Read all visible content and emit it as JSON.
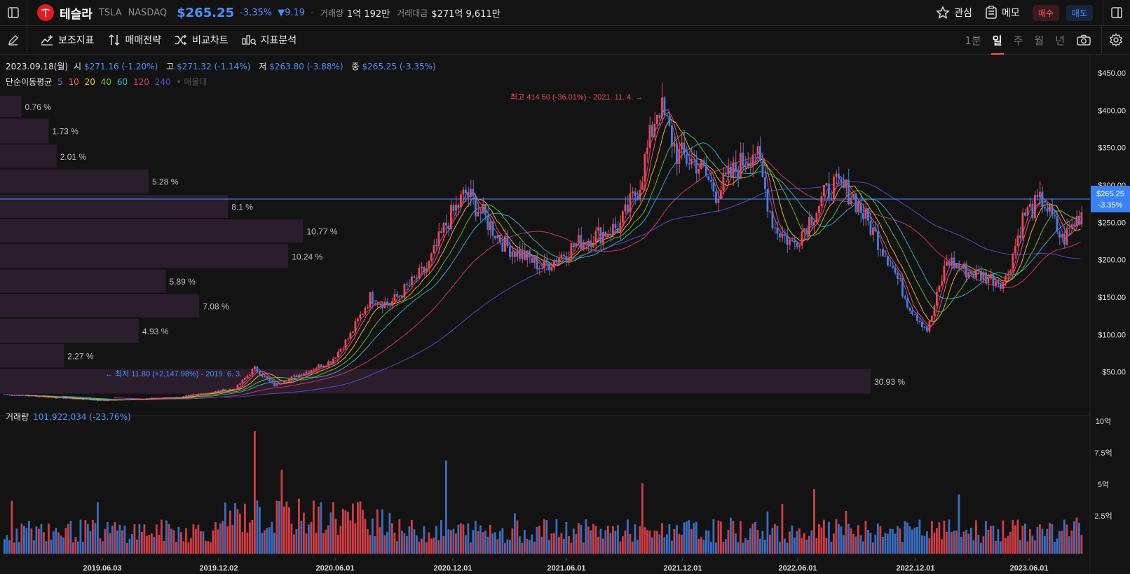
{
  "header": {
    "name": "테슬라",
    "ticker": "TSLA",
    "exchange": "NASDAQ",
    "price": "$265.25",
    "change_pct": "-3.35%",
    "change_abs": "▼9.19",
    "volume_label": "거래량",
    "volume_value": "1억 192만",
    "turnover_label": "거래대금",
    "turnover_value": "$271억 9,611만",
    "watch_label": "관심",
    "memo_label": "메모",
    "buy_label": "매수",
    "sell_label": "매도"
  },
  "toolbar": {
    "indicator_label": "보조지표",
    "strategy_label": "매매전략",
    "compare_label": "비교차트",
    "analysis_label": "지표분석",
    "timeframes": [
      "1분",
      "일",
      "주",
      "월",
      "년"
    ],
    "active_timeframe": "일"
  },
  "ohlc": {
    "date": "2023.09.18(월)",
    "open_label": "시",
    "open_value": "$271.16 (-1.20%)",
    "high_label": "고",
    "high_value": "$271.32 (-1.14%)",
    "low_label": "저",
    "low_value": "$263.80 (-3.88%)",
    "close_label": "종",
    "close_value": "$265.25 (-3.35%)"
  },
  "ma": {
    "label": "단순이동평균",
    "periods": [
      "5",
      "10",
      "20",
      "40",
      "60",
      "120",
      "240"
    ],
    "colors": [
      "#b34fd6",
      "#ff5a5a",
      "#f5c518",
      "#66c23a",
      "#33b5cc",
      "#e0337a",
      "#5a4fd6"
    ],
    "extra": "• 매물대"
  },
  "annotations": {
    "high": "최고 414.50 (-36.01%) - 2021. 11. 4. →",
    "low": "← 최저 11.80 (+2,147.98%) - 2019. 6. 3."
  },
  "volume_panel": {
    "label": "거래량",
    "value": "101,922,034 (-23.76%)",
    "axis": [
      "10억",
      "7.5억",
      "5억",
      "2.5억"
    ]
  },
  "current_price_tag": {
    "price": "$265.25",
    "change": "-3.35%"
  },
  "colors": {
    "up": "#f0454e",
    "down": "#3f7fe0",
    "accent": "#4b8fff",
    "profile": "#2a1d2c"
  },
  "chart_data": {
    "type": "candlestick",
    "price_axis": [
      "$450.00",
      "$400.00",
      "$350.00",
      "$300.00",
      "$250.00",
      "$200.00",
      "$150.00",
      "$100.00",
      "$50.00"
    ],
    "ylim": [
      0,
      450
    ],
    "x_ticks": [
      "2019.06.03",
      "2019.12.02",
      "2020.06.01",
      "2020.12.01",
      "2021.06.01",
      "2021.12.01",
      "2022.06.01",
      "2022.12.01",
      "2023.06.01"
    ],
    "price_path": [
      [
        "2019.01",
        20
      ],
      [
        "2019.06",
        12
      ],
      [
        "2019.10",
        16
      ],
      [
        "2020.01",
        28
      ],
      [
        "2020.02",
        55
      ],
      [
        "2020.03",
        32
      ],
      [
        "2020.06",
        65
      ],
      [
        "2020.07",
        100
      ],
      [
        "2020.08",
        150
      ],
      [
        "2020.09",
        140
      ],
      [
        "2020.11",
        190
      ],
      [
        "2020.12",
        250
      ],
      [
        "2021.01",
        290
      ],
      [
        "2021.03",
        220
      ],
      [
        "2021.05",
        190
      ],
      [
        "2021.07",
        225
      ],
      [
        "2021.09",
        245
      ],
      [
        "2021.10",
        300
      ],
      [
        "2021.11",
        410
      ],
      [
        "2021.12",
        340
      ],
      [
        "2022.01",
        330
      ],
      [
        "2022.02",
        290
      ],
      [
        "2022.04",
        350
      ],
      [
        "2022.05",
        245
      ],
      [
        "2022.06",
        220
      ],
      [
        "2022.08",
        300
      ],
      [
        "2022.09",
        290
      ],
      [
        "2022.11",
        200
      ],
      [
        "2022.12",
        140
      ],
      [
        "2023.01",
        105
      ],
      [
        "2023.02",
        200
      ],
      [
        "2023.03",
        185
      ],
      [
        "2023.05",
        170
      ],
      [
        "2023.06",
        260
      ],
      [
        "2023.07",
        280
      ],
      [
        "2023.08",
        225
      ],
      [
        "2023.09",
        265
      ]
    ],
    "volume_profile": [
      {
        "price_from": 390,
        "price_to": 420,
        "pct": "0.76 %",
        "share": 0.76
      },
      {
        "price_from": 355,
        "price_to": 390,
        "pct": "1.73 %",
        "share": 1.73
      },
      {
        "price_from": 322,
        "price_to": 355,
        "pct": "2.01 %",
        "share": 2.01
      },
      {
        "price_from": 288,
        "price_to": 322,
        "pct": "5.28 %",
        "share": 5.28
      },
      {
        "price_from": 255,
        "price_to": 288,
        "pct": "8.1 %",
        "share": 8.1
      },
      {
        "price_from": 222,
        "price_to": 255,
        "pct": "10.77 %",
        "share": 10.77
      },
      {
        "price_from": 188,
        "price_to": 222,
        "pct": "10.24 %",
        "share": 10.24
      },
      {
        "price_from": 155,
        "price_to": 188,
        "pct": "5.89 %",
        "share": 5.89
      },
      {
        "price_from": 122,
        "price_to": 155,
        "pct": "7.08 %",
        "share": 7.08
      },
      {
        "price_from": 88,
        "price_to": 122,
        "pct": "4.93 %",
        "share": 4.93
      },
      {
        "price_from": 55,
        "price_to": 88,
        "pct": "2.27 %",
        "share": 2.27
      },
      {
        "price_from": 20,
        "price_to": 55,
        "pct": "30.93 %",
        "share": 30.93
      }
    ]
  }
}
